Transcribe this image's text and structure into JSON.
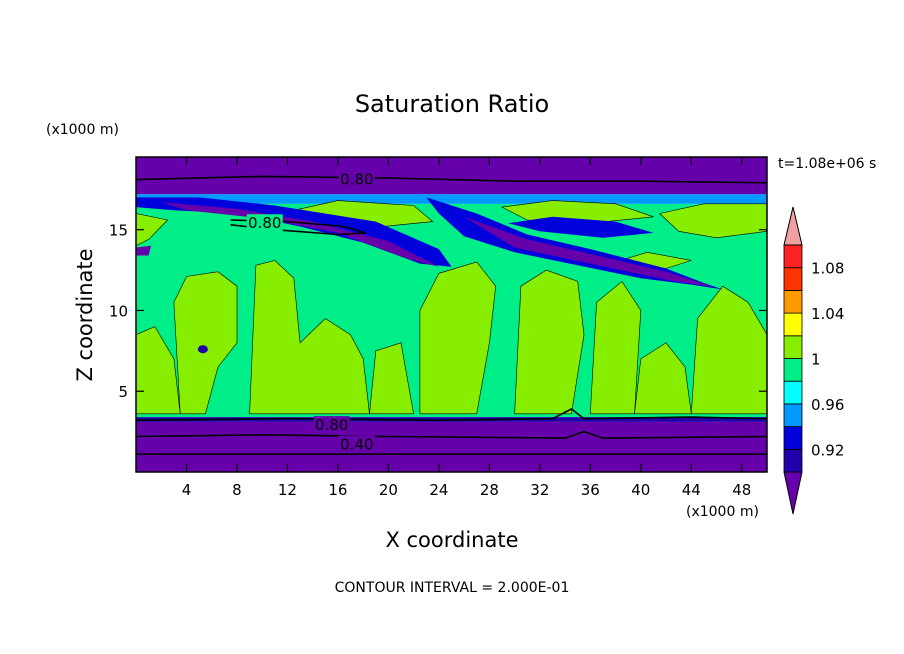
{
  "chart_data": {
    "type": "heatmap",
    "title": "Saturation Ratio",
    "xlabel": "X coordinate",
    "ylabel": "Z coordinate",
    "x_unit": "(x1000 m)",
    "y_unit": "(x1000 m)",
    "time_label": "t=1.08e+06 s",
    "footer": "CONTOUR INTERVAL = 2.000E-01",
    "xlim": [
      0,
      50
    ],
    "ylim": [
      0,
      19.5
    ],
    "x_ticks": [
      "4",
      "8",
      "12",
      "16",
      "20",
      "24",
      "28",
      "32",
      "36",
      "40",
      "44",
      "48"
    ],
    "x_tick_values": [
      4,
      8,
      12,
      16,
      20,
      24,
      28,
      32,
      36,
      40,
      44,
      48
    ],
    "y_ticks": [
      "5",
      "10",
      "15"
    ],
    "y_tick_values": [
      5,
      10,
      15
    ],
    "colorbar": {
      "levels": [
        0.9,
        0.92,
        0.94,
        0.96,
        0.98,
        1.0,
        1.02,
        1.04,
        1.06,
        1.08,
        1.1
      ],
      "labels": [
        "0.92",
        "0.96",
        "1",
        "1.04",
        "1.08"
      ],
      "label_values": [
        0.92,
        0.96,
        1.0,
        1.04,
        1.08
      ],
      "colors": [
        "#6600aa",
        "#2200aa",
        "#0000dd",
        "#0099ff",
        "#00ffff",
        "#00ee88",
        "#88ee00",
        "#ffff00",
        "#ff9900",
        "#ff3300",
        "#ff2222",
        "#f0a0a0"
      ],
      "extend": "both"
    },
    "contour_labels": [
      {
        "text": "0.80",
        "x": 17.5,
        "z": 18.1
      },
      {
        "text": "0.80",
        "x": 10.2,
        "z": 15.4
      },
      {
        "text": "0.80",
        "x": 15.5,
        "z": 2.9
      },
      {
        "text": "0.40",
        "x": 17.5,
        "z": 1.7
      }
    ]
  }
}
